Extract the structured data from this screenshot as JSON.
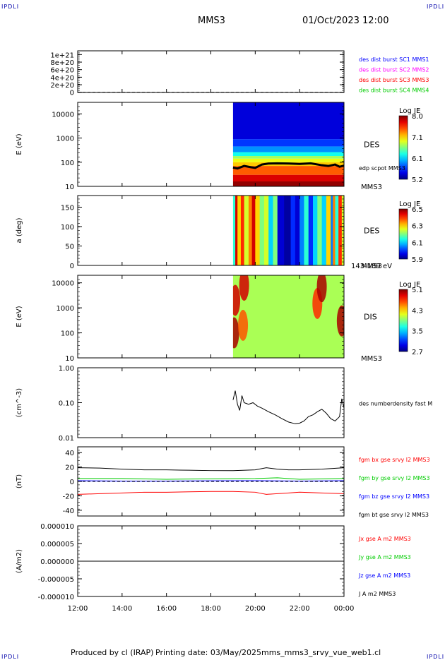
{
  "header": {
    "corner_label": "IPDLI",
    "spacecraft": "MMS3",
    "datetime": "01/Oct/2023 12:00"
  },
  "footer": {
    "produced_by": "Produced by cl (IRAP)",
    "printing_date": "Printing date: 03/May/2025",
    "script_name": "mms_mms3_srvy_vue_web1.cl"
  },
  "time_axis": {
    "ticks": [
      "12:00",
      "14:00",
      "16:00",
      "18:00",
      "20:00",
      "22:00",
      "00:00"
    ],
    "range_hours": [
      12,
      24
    ],
    "data_start_hour": 19.0
  },
  "colors": {
    "blue": "#0000ff",
    "magenta": "#ff00ff",
    "red": "#ff0000",
    "green": "#00cc00",
    "black": "#000000"
  },
  "chart_data": [
    {
      "id": "panel1",
      "type": "line",
      "ylabel": "",
      "ytick_labels": [
        "0",
        "2e+20",
        "4e+20",
        "6e+20",
        "8e+20",
        "1e+21"
      ],
      "yticks": [
        0,
        2e+20,
        4e+20,
        6e+20,
        8e+20,
        1e+21
      ],
      "ylim": [
        -5e+18,
        1.1e+21
      ],
      "legend": [
        {
          "text": "des dist burst SC1 MMS1",
          "color": "#0000ff"
        },
        {
          "text": "des dist burst SC2 MMS2",
          "color": "#ff00ff"
        },
        {
          "text": "des dist burst SC3 MMS3",
          "color": "#ff0000"
        },
        {
          "text": "des dist burst SC4 MMS4",
          "color": "#00cc00"
        }
      ],
      "series": [],
      "zero_line": true
    },
    {
      "id": "panel2",
      "type": "heatmap",
      "ylog": true,
      "ylabel": "E (eV)",
      "ytick_labels": [
        "10",
        "100",
        "1000",
        "10000"
      ],
      "ylim": [
        10,
        30000
      ],
      "labels": [
        "DES",
        "MMS3"
      ],
      "overlay_label": "edp scpot MMS3",
      "colorbar": {
        "title": "Log JE",
        "ticks": [
          "8.0",
          "7.1",
          "6.1",
          "5.2"
        ],
        "range": [
          5.2,
          8.0
        ]
      },
      "bands": [
        {
          "from": 10,
          "to": 16,
          "level": 7.95
        },
        {
          "from": 16,
          "to": 30,
          "level": 7.75
        },
        {
          "from": 30,
          "to": 70,
          "level": 7.4
        },
        {
          "from": 70,
          "to": 100,
          "level": 7.1
        },
        {
          "from": 100,
          "to": 140,
          "level": 6.9
        },
        {
          "from": 140,
          "to": 180,
          "level": 6.7
        },
        {
          "from": 180,
          "to": 260,
          "level": 6.3
        },
        {
          "from": 260,
          "to": 450,
          "level": 5.95
        },
        {
          "from": 450,
          "to": 900,
          "level": 5.7
        },
        {
          "from": 900,
          "to": 30000,
          "level": 5.45
        }
      ],
      "scpot": [
        [
          19.0,
          60
        ],
        [
          19.2,
          55
        ],
        [
          19.5,
          70
        ],
        [
          19.8,
          62
        ],
        [
          20.0,
          58
        ],
        [
          20.3,
          80
        ],
        [
          20.6,
          88
        ],
        [
          21.0,
          90
        ],
        [
          21.5,
          88
        ],
        [
          22.0,
          85
        ],
        [
          22.5,
          90
        ],
        [
          23.0,
          75
        ],
        [
          23.3,
          70
        ],
        [
          23.6,
          80
        ],
        [
          23.8,
          65
        ],
        [
          24.0,
          72
        ]
      ]
    },
    {
      "id": "panel3",
      "type": "heatmap",
      "ylabel": "a (deg)",
      "ytick_labels": [
        "0",
        "50",
        "100",
        "150"
      ],
      "yticks": [
        0,
        50,
        100,
        150
      ],
      "ylim": [
        0,
        180
      ],
      "labels": [
        "DES",
        "MMS3"
      ],
      "energy_label": "143-189 eV",
      "colorbar": {
        "title": "Log JE",
        "ticks": [
          "6.5",
          "6.3",
          "6.1",
          "5.9"
        ],
        "range": [
          5.9,
          6.5
        ]
      },
      "columns": [
        [
          19.0,
          6.15
        ],
        [
          19.1,
          6.45
        ],
        [
          19.2,
          6.3
        ],
        [
          19.35,
          6.4
        ],
        [
          19.5,
          6.25
        ],
        [
          19.7,
          6.35
        ],
        [
          19.85,
          6.45
        ],
        [
          20.0,
          6.3
        ],
        [
          20.2,
          6.2
        ],
        [
          20.4,
          6.25
        ],
        [
          20.6,
          6.1
        ],
        [
          20.8,
          6.2
        ],
        [
          21.0,
          5.95
        ],
        [
          21.3,
          5.92
        ],
        [
          21.6,
          6.0
        ],
        [
          21.8,
          5.95
        ],
        [
          22.0,
          6.05
        ],
        [
          22.2,
          6.15
        ],
        [
          22.4,
          6.0
        ],
        [
          22.6,
          6.1
        ],
        [
          22.8,
          6.2
        ],
        [
          23.0,
          6.1
        ],
        [
          23.2,
          6.3
        ],
        [
          23.4,
          6.05
        ],
        [
          23.5,
          6.35
        ],
        [
          23.6,
          6.15
        ],
        [
          23.75,
          6.4
        ],
        [
          23.9,
          6.25
        ]
      ]
    },
    {
      "id": "panel4",
      "type": "heatmap",
      "ylog": true,
      "ylabel": "E (eV)",
      "ytick_labels": [
        "10",
        "100",
        "1000",
        "10000"
      ],
      "ylim": [
        10,
        20000
      ],
      "labels": [
        "DIS",
        "MMS3"
      ],
      "colorbar": {
        "title": "Log JE",
        "ticks": [
          "5.1",
          "4.3",
          "3.5",
          "2.7"
        ],
        "range": [
          2.7,
          5.1
        ]
      },
      "base_level": 4.0,
      "hotspots": [
        {
          "t": 19.05,
          "e": 100,
          "level": 5.0
        },
        {
          "t": 19.1,
          "e": 2000,
          "level": 4.9
        },
        {
          "t": 19.5,
          "e": 8000,
          "level": 4.9
        },
        {
          "t": 19.45,
          "e": 200,
          "level": 4.6
        },
        {
          "t": 22.8,
          "e": 1500,
          "level": 4.7
        },
        {
          "t": 23.0,
          "e": 7000,
          "level": 5.0
        },
        {
          "t": 23.9,
          "e": 300,
          "level": 5.0
        }
      ]
    },
    {
      "id": "panel5",
      "type": "line",
      "ylog": true,
      "ylabel": "(cm^-3)",
      "ytick_labels": [
        "0.01",
        "0.10",
        "1.00"
      ],
      "ylim": [
        0.01,
        1.0
      ],
      "legend": [
        {
          "text": "des numberdensity fast M",
          "color": "#000000"
        }
      ],
      "series": [
        {
          "color": "#000000",
          "x": [
            19.0,
            19.1,
            19.2,
            19.3,
            19.4,
            19.5,
            19.7,
            19.9,
            20.1,
            20.3,
            20.6,
            20.9,
            21.2,
            21.5,
            21.8,
            22.0,
            22.2,
            22.4,
            22.6,
            22.8,
            23.0,
            23.2,
            23.4,
            23.6,
            23.8,
            23.9,
            24.0
          ],
          "y": [
            0.12,
            0.22,
            0.09,
            0.06,
            0.16,
            0.1,
            0.09,
            0.1,
            0.08,
            0.07,
            0.055,
            0.045,
            0.035,
            0.028,
            0.025,
            0.026,
            0.03,
            0.04,
            0.045,
            0.055,
            0.065,
            0.05,
            0.035,
            0.03,
            0.04,
            0.13,
            0.07
          ]
        }
      ]
    },
    {
      "id": "panel6",
      "type": "line",
      "ylabel": "(nT)",
      "ytick_labels": [
        "-40",
        "-20",
        "0",
        "20",
        "40"
      ],
      "yticks": [
        -40,
        -20,
        0,
        20,
        40
      ],
      "ylim": [
        -48,
        48
      ],
      "legend": [
        {
          "text": "fgm bx gse srvy l2 MMS3",
          "color": "#ff0000"
        },
        {
          "text": "fgm by gse srvy l2 MMS3",
          "color": "#00cc00"
        },
        {
          "text": "fgm bz gse srvy l2 MMS3",
          "color": "#0000ff"
        },
        {
          "text": "fgm bt gse srvy l2 MMS3",
          "color": "#000000"
        }
      ],
      "series": [
        {
          "color": "#ff0000",
          "x": [
            12,
            13,
            14,
            15,
            16,
            17,
            18,
            19,
            20,
            20.5,
            21,
            21.5,
            22,
            23,
            24
          ],
          "y": [
            -18,
            -17,
            -16,
            -15,
            -15,
            -14.5,
            -14,
            -14,
            -15,
            -18,
            -17,
            -16,
            -15,
            -16,
            -17
          ]
        },
        {
          "color": "#00cc00",
          "x": [
            12,
            14,
            16,
            18,
            20,
            21,
            22,
            24
          ],
          "y": [
            4,
            4,
            3,
            3.5,
            4,
            5,
            3,
            4
          ]
        },
        {
          "color": "#0000ff",
          "x": [
            12,
            14,
            16,
            18,
            20,
            22,
            24
          ],
          "y": [
            1,
            0.5,
            0.5,
            0.8,
            1,
            0.5,
            1
          ]
        },
        {
          "color": "#000000",
          "x": [
            12,
            13,
            14,
            15,
            16,
            17,
            18,
            19,
            20,
            20.5,
            21,
            21.5,
            22,
            23,
            24
          ],
          "y": [
            19,
            18.5,
            17,
            16,
            16,
            15.5,
            15,
            15,
            16,
            19,
            17,
            16,
            16,
            17,
            19
          ]
        }
      ],
      "zero_line": true
    },
    {
      "id": "panel7",
      "type": "line",
      "ylabel": "(A/m2)",
      "ytick_labels": [
        "-0.000010",
        "-0.000005",
        "0.000000",
        "0.000005",
        "0.000010"
      ],
      "yticks": [
        -1e-05,
        -5e-06,
        0,
        5e-06,
        1e-05
      ],
      "ylim": [
        -1e-05,
        1e-05
      ],
      "legend": [
        {
          "text": "Jx gse A m2 MMS3",
          "color": "#ff0000"
        },
        {
          "text": "Jy gse A m2 MMS3",
          "color": "#00cc00"
        },
        {
          "text": "Jz gse A m2 MMS3",
          "color": "#0000ff"
        },
        {
          "text": "J A m2 MMS3",
          "color": "#000000"
        }
      ],
      "series": [
        {
          "color": "#000000",
          "x": [
            12,
            24
          ],
          "y": [
            0,
            0
          ]
        }
      ]
    }
  ]
}
